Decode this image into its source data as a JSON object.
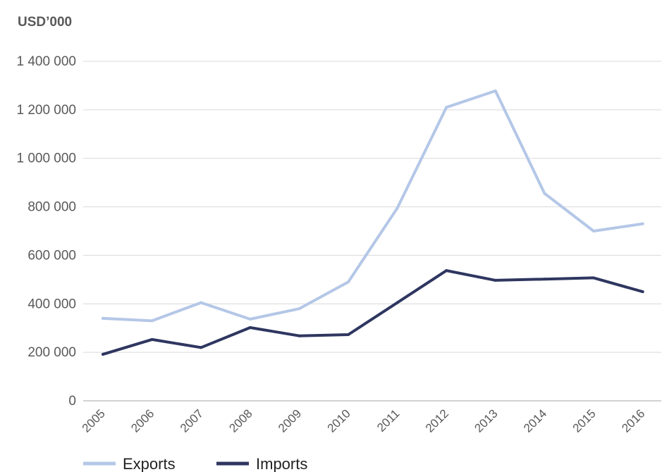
{
  "chart_data": {
    "type": "line",
    "unit_label": "USD’000",
    "categories": [
      "2005",
      "2006",
      "2007",
      "2008",
      "2009",
      "2010",
      "2011",
      "2012",
      "2013",
      "2014",
      "2015",
      "2016"
    ],
    "series": [
      {
        "name": "Exports",
        "color": "#b4c7e7",
        "values": [
          340000,
          330000,
          405000,
          337000,
          380000,
          490000,
          795000,
          1210000,
          1278000,
          855000,
          700000,
          730000
        ]
      },
      {
        "name": "Imports",
        "color": "#2e3660",
        "values": [
          192000,
          253000,
          220000,
          302000,
          268000,
          273000,
          405000,
          537000,
          497000,
          502000,
          507000,
          450000
        ]
      }
    ],
    "ylim": [
      0,
      1400000
    ],
    "yticks": [
      0,
      200000,
      400000,
      600000,
      800000,
      1000000,
      1200000,
      1400000
    ],
    "ytick_labels": [
      "0",
      "200 000",
      "400 000",
      "600 000",
      "800 000",
      "1 000 000",
      "1 200 000",
      "1 400 000"
    ],
    "grid": true,
    "legend_position": "bottom-left"
  }
}
